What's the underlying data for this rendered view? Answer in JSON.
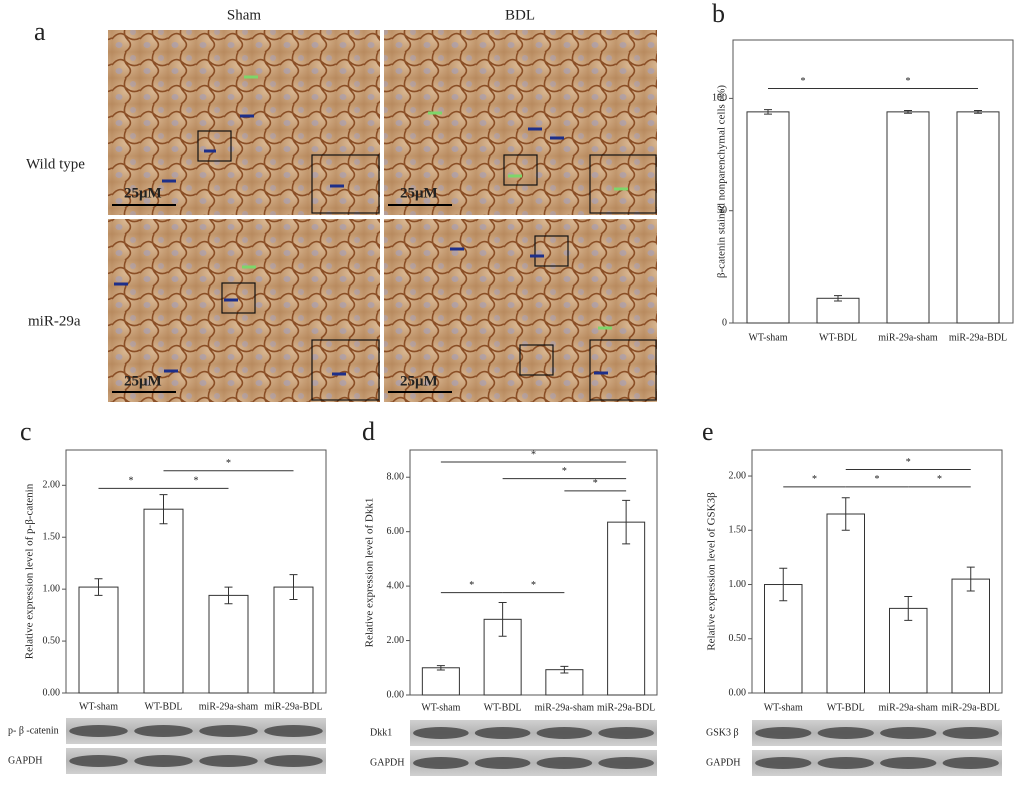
{
  "panel_a": {
    "letter": "a",
    "columns": [
      "Sham",
      "BDL"
    ],
    "rows": [
      "Wild type",
      "miR-29a"
    ],
    "scale_bar": "25μM"
  },
  "chart_data": [
    {
      "type": "bar",
      "panel": "b",
      "ylabel": "β-catenin stained nonparenchymal cells (%)",
      "categories": [
        "WT-sham",
        "WT-BDL",
        "miR-29a-sham",
        "miR-29a-BDL"
      ],
      "series": [
        {
          "color": "#ffffff",
          "values": [
            94,
            11,
            94,
            94
          ],
          "errors": [
            1,
            1.2,
            0.6,
            0.6
          ]
        }
      ],
      "ylim": [
        0,
        126
      ],
      "yticks": [
        0,
        50,
        100
      ],
      "significance": [
        {
          "between": [
            "WT-sham",
            "WT-BDL"
          ],
          "y": 104.4,
          "label": "*"
        },
        {
          "between": [
            "WT-BDL",
            "miR-29a-BDL"
          ],
          "y": 104.4,
          "label": "*"
        }
      ]
    },
    {
      "type": "bar",
      "panel": "c",
      "ylabel": "Relative expression level of p-β-catenin",
      "categories": [
        "WT-sham",
        "WT-BDL",
        "miR-29a-sham",
        "miR-29a-BDL"
      ],
      "series": [
        {
          "color": "#ffffff",
          "values": [
            1.02,
            1.77,
            0.94,
            1.02
          ],
          "errors": [
            0.08,
            0.14,
            0.08,
            0.12
          ]
        }
      ],
      "ylim": [
        0,
        2.34
      ],
      "yticks": [
        {
          "value": 0,
          "label": "0.00"
        },
        {
          "value": 0.5,
          "label": "0.50"
        },
        {
          "value": 1,
          "label": "1.00"
        },
        {
          "value": 1.5,
          "label": "1.50"
        },
        {
          "value": 2,
          "label": "2.00"
        }
      ],
      "significance": [
        {
          "between": [
            "WT-sham",
            "WT-BDL"
          ],
          "y": 1.97,
          "label": "*"
        },
        {
          "between": [
            "WT-BDL",
            "miR-29a-sham"
          ],
          "y": 1.97,
          "label": "*"
        },
        {
          "between": [
            "WT-BDL",
            "miR-29a-BDL"
          ],
          "y": 2.14,
          "label": "*"
        }
      ],
      "blot_labels": [
        "p- β -catenin",
        "GAPDH"
      ]
    },
    {
      "type": "bar",
      "panel": "d",
      "ylabel": "Relative expression level of Dkk1",
      "categories": [
        "WT-sham",
        "WT-BDL",
        "miR-29a-sham",
        "miR-29a-BDL"
      ],
      "series": [
        {
          "color": "#ffffff",
          "values": [
            1.0,
            2.78,
            0.93,
            6.35
          ],
          "errors": [
            0.08,
            0.62,
            0.12,
            0.8
          ]
        }
      ],
      "ylim": [
        0,
        9.0
      ],
      "yticks": [
        {
          "value": 0,
          "label": "0.00"
        },
        {
          "value": 2,
          "label": "2.00"
        },
        {
          "value": 4,
          "label": "4.00"
        },
        {
          "value": 6,
          "label": "6.00"
        },
        {
          "value": 8,
          "label": "8.00"
        }
      ],
      "significance": [
        {
          "between": [
            "WT-sham",
            "WT-BDL"
          ],
          "y": 3.76,
          "label": "*"
        },
        {
          "between": [
            "WT-BDL",
            "miR-29a-sham"
          ],
          "y": 3.76,
          "label": "*"
        },
        {
          "between": [
            "miR-29a-sham",
            "miR-29a-BDL"
          ],
          "y": 7.5,
          "label": "*"
        },
        {
          "between": [
            "WT-BDL",
            "miR-29a-BDL"
          ],
          "y": 7.95,
          "label": "*"
        },
        {
          "between": [
            "WT-sham",
            "miR-29a-BDL"
          ],
          "y": 8.56,
          "label": "*"
        }
      ],
      "blot_labels": [
        "Dkk1",
        "GAPDH"
      ]
    },
    {
      "type": "bar",
      "panel": "e",
      "ylabel": "Relative expression level of GSK3β",
      "categories": [
        "WT-sham",
        "WT-BDL",
        "miR-29a-sham",
        "miR-29a-BDL"
      ],
      "series": [
        {
          "color": "#ffffff",
          "values": [
            1.0,
            1.65,
            0.78,
            1.05
          ],
          "errors": [
            0.15,
            0.15,
            0.11,
            0.11
          ]
        }
      ],
      "ylim": [
        0,
        2.24
      ],
      "yticks": [
        {
          "value": 0,
          "label": "0.00"
        },
        {
          "value": 0.5,
          "label": "0.50"
        },
        {
          "value": 1,
          "label": "1.00"
        },
        {
          "value": 1.5,
          "label": "1.50"
        },
        {
          "value": 2,
          "label": "2.00"
        }
      ],
      "significance": [
        {
          "between": [
            "WT-sham",
            "WT-BDL"
          ],
          "y": 1.9,
          "label": "*"
        },
        {
          "between": [
            "WT-BDL",
            "miR-29a-sham"
          ],
          "y": 1.9,
          "label": "*"
        },
        {
          "between": [
            "miR-29a-sham",
            "miR-29a-BDL"
          ],
          "y": 1.9,
          "label": "*"
        },
        {
          "between": [
            "WT-BDL",
            "miR-29a-BDL"
          ],
          "y": 2.06,
          "label": "*"
        }
      ],
      "blot_labels": [
        "GSK3 β",
        "GAPDH"
      ]
    }
  ]
}
